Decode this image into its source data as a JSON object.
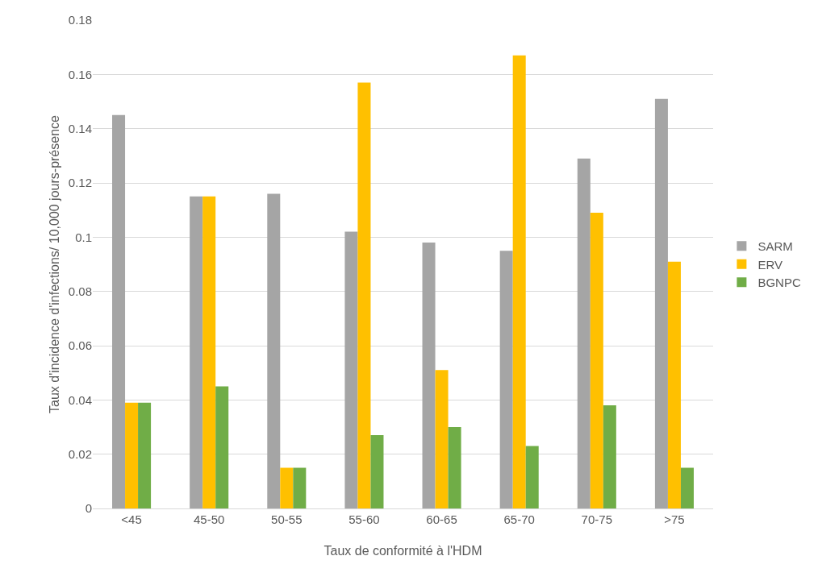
{
  "chart_data": {
    "type": "bar",
    "xlabel": "Taux de conformité à l'HDM",
    "ylabel": "Taux d'incidence d'infections/ 10,000 jours-présence",
    "categories": [
      "<45",
      "45-50",
      "50-55",
      "55-60",
      "60-65",
      "65-70",
      "70-75",
      ">75"
    ],
    "series": [
      {
        "name": "SARM",
        "color": "#a5a5a5",
        "values": [
          0.145,
          0.115,
          0.116,
          0.102,
          0.098,
          0.095,
          0.129,
          0.151
        ]
      },
      {
        "name": "ERV",
        "color": "#ffc000",
        "values": [
          0.039,
          0.115,
          0.015,
          0.157,
          0.051,
          0.167,
          0.109,
          0.091
        ]
      },
      {
        "name": "BGNPC",
        "color": "#70ad47",
        "values": [
          0.039,
          0.045,
          0.015,
          0.027,
          0.03,
          0.023,
          0.038,
          0.015
        ]
      }
    ],
    "ylim": [
      0,
      0.18
    ],
    "yticks": [
      0,
      0.02,
      0.04,
      0.06,
      0.08,
      0.1,
      0.12,
      0.14,
      0.16,
      0.18
    ],
    "grid": "y",
    "legend": "right"
  }
}
